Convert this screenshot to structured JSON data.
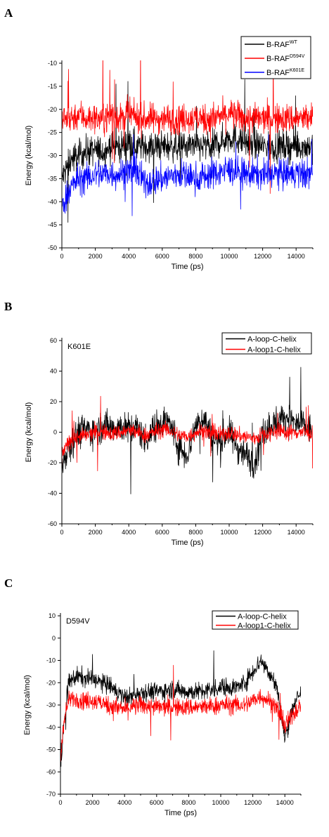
{
  "chart_data": [
    {
      "type": "line",
      "panel_label": "A",
      "annotation": "",
      "xlabel": "Time (ps)",
      "ylabel": "Energy (kcal/mol)",
      "xlim": [
        0,
        15000
      ],
      "ylim": [
        -50,
        -10
      ],
      "xticks": [
        0,
        2000,
        4000,
        6000,
        8000,
        10000,
        12000,
        14000
      ],
      "yticks": [
        -50,
        -45,
        -40,
        -35,
        -30,
        -25,
        -20,
        -15,
        -10
      ],
      "legend_position": "top-right",
      "series": [
        {
          "name": "B-RAF",
          "superscript": "WT",
          "color": "#000000",
          "x": [
            0,
            500,
            1000,
            1500,
            2000,
            2500,
            3000,
            3500,
            4000,
            4500,
            5000,
            6000,
            7000,
            8000,
            9000,
            10000,
            11000,
            12000,
            13000,
            14000,
            15000
          ],
          "y": [
            -35,
            -31,
            -30,
            -29,
            -29,
            -29,
            -28,
            -28,
            -27,
            -28,
            -28,
            -28,
            -28,
            -28,
            -28,
            -26,
            -27,
            -28,
            -28,
            -28,
            -28
          ]
        },
        {
          "name": "B-RAF",
          "superscript": "D594V",
          "color": "#ff0000",
          "x": [
            0,
            500,
            1000,
            1500,
            2000,
            2500,
            3000,
            3500,
            4000,
            4500,
            5000,
            6000,
            7000,
            8000,
            9000,
            10000,
            11000,
            12000,
            13000,
            14000,
            15000
          ],
          "y": [
            -22,
            -22,
            -21,
            -22,
            -22,
            -22,
            -21,
            -22,
            -21,
            -22,
            -22,
            -22,
            -22,
            -22,
            -22,
            -21,
            -22,
            -22,
            -22,
            -22,
            -22
          ]
        },
        {
          "name": "B-RAF",
          "superscript": "K601E",
          "color": "#0000ff",
          "x": [
            0,
            500,
            1000,
            1500,
            2000,
            2500,
            3000,
            3500,
            4000,
            4500,
            5000,
            6000,
            7000,
            8000,
            9000,
            10000,
            11000,
            12000,
            13000,
            14000,
            15000
          ],
          "y": [
            -41,
            -37,
            -35,
            -35,
            -34,
            -34,
            -34,
            -34,
            -33,
            -34,
            -36,
            -35,
            -34,
            -35,
            -34,
            -33,
            -34,
            -34,
            -34,
            -34,
            -34
          ]
        }
      ]
    },
    {
      "type": "line",
      "panel_label": "B",
      "annotation": "K601E",
      "xlabel": "Time (ps)",
      "ylabel": "Energy (kcal/mol)",
      "xlim": [
        0,
        15000
      ],
      "ylim": [
        -60,
        60
      ],
      "xticks": [
        0,
        2000,
        4000,
        6000,
        8000,
        10000,
        12000,
        14000
      ],
      "yticks": [
        -60,
        -40,
        -20,
        0,
        20,
        40,
        60
      ],
      "legend_position": "top-right",
      "series": [
        {
          "name": "A-loop-C-helix",
          "superscript": "",
          "color": "#000000",
          "x": [
            0,
            500,
            1000,
            1500,
            2000,
            2500,
            3000,
            3500,
            4000,
            4500,
            5000,
            5500,
            6000,
            6500,
            7000,
            7500,
            8000,
            8500,
            9000,
            9500,
            10000,
            10500,
            11000,
            11500,
            12000,
            12500,
            13000,
            13500,
            14000,
            14500,
            15000
          ],
          "y": [
            -20,
            -8,
            0,
            2,
            0,
            5,
            3,
            4,
            2,
            3,
            -5,
            2,
            8,
            5,
            -10,
            -15,
            5,
            10,
            -5,
            -5,
            0,
            -10,
            -15,
            -20,
            0,
            5,
            8,
            10,
            5,
            5,
            0
          ]
        },
        {
          "name": "A-loop1-C-helix",
          "superscript": "",
          "color": "#ff0000",
          "x": [
            0,
            500,
            1000,
            1500,
            2000,
            2500,
            3000,
            3500,
            4000,
            4500,
            5000,
            5500,
            6000,
            6500,
            7000,
            7500,
            8000,
            8500,
            9000,
            9500,
            10000,
            10500,
            11000,
            11500,
            12000,
            12500,
            13000,
            13500,
            14000,
            14500,
            15000
          ],
          "y": [
            -15,
            -5,
            -3,
            -2,
            0,
            0,
            -1,
            0,
            1,
            0,
            -2,
            0,
            2,
            1,
            -2,
            -3,
            0,
            1,
            -1,
            -2,
            0,
            -2,
            -3,
            -4,
            -2,
            0,
            1,
            0,
            0,
            0,
            -2
          ]
        }
      ]
    },
    {
      "type": "line",
      "panel_label": "C",
      "annotation": "D594V",
      "xlabel": "Time (ps)",
      "ylabel": "Energy (kcal/mol)",
      "xlim": [
        0,
        15000
      ],
      "ylim": [
        -70,
        10
      ],
      "xticks": [
        0,
        2000,
        4000,
        6000,
        8000,
        10000,
        12000,
        14000
      ],
      "yticks": [
        -70,
        -60,
        -50,
        -40,
        -30,
        -20,
        -10,
        0,
        10
      ],
      "legend_position": "top-right",
      "series": [
        {
          "name": "A-loop-C-helix",
          "superscript": "",
          "color": "#000000",
          "x": [
            0,
            200,
            500,
            1000,
            1500,
            2000,
            2500,
            3000,
            3500,
            4000,
            4500,
            5000,
            6000,
            7000,
            8000,
            9000,
            10000,
            11000,
            11500,
            12000,
            12500,
            13000,
            13500,
            14000,
            14500,
            15000
          ],
          "y": [
            -60,
            -40,
            -20,
            -17,
            -18,
            -18,
            -20,
            -21,
            -24,
            -27,
            -26,
            -24,
            -24,
            -23,
            -24,
            -24,
            -22,
            -22,
            -20,
            -15,
            -10,
            -15,
            -22,
            -45,
            -30,
            -25
          ]
        },
        {
          "name": "A-loop1-C-helix",
          "superscript": "",
          "color": "#ff0000",
          "x": [
            0,
            200,
            500,
            1000,
            1500,
            2000,
            2500,
            3000,
            3500,
            4000,
            4500,
            5000,
            6000,
            7000,
            8000,
            9000,
            10000,
            11000,
            11500,
            12000,
            12500,
            13000,
            13500,
            14000,
            14500,
            15000
          ],
          "y": [
            -55,
            -38,
            -28,
            -27,
            -28,
            -28,
            -29,
            -30,
            -31,
            -32,
            -31,
            -30,
            -31,
            -31,
            -31,
            -31,
            -30,
            -30,
            -30,
            -28,
            -26,
            -28,
            -31,
            -40,
            -34,
            -30
          ]
        }
      ]
    }
  ]
}
